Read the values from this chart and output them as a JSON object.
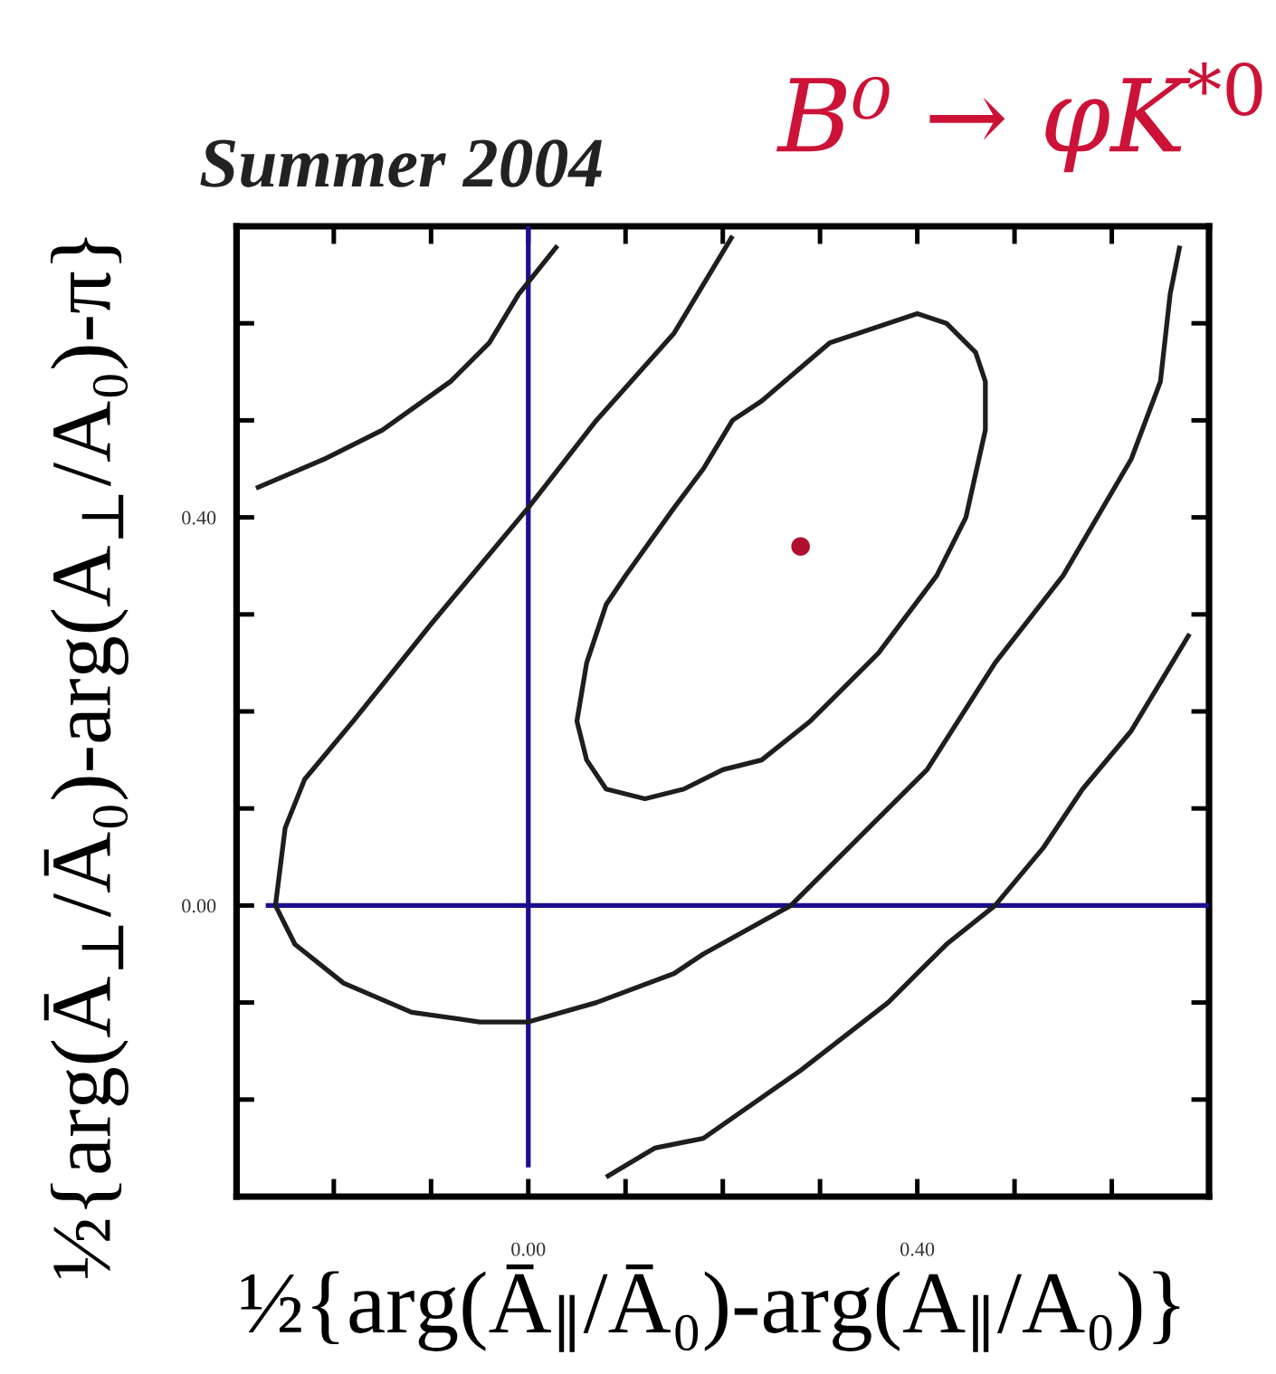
{
  "chart_data": {
    "type": "line",
    "title": "B⁰ → φK$^{*0}$",
    "xlabel": "½{arg(Ā$_{∥}$/Ā₀)-arg(A$_{∥}$/A₀)}",
    "ylabel": "½{arg(Ā$_{⊥}$/Ā₀)-arg(A$_{⊥}$/A₀)-π}",
    "annotations": [
      "Summer 2004"
    ],
    "xlim": [
      -0.3,
      0.7
    ],
    "ylim": [
      -0.3,
      0.7
    ],
    "xticks": [
      {
        "value": -0.2,
        "label": null
      },
      {
        "value": -0.1,
        "label": null
      },
      {
        "value": 0,
        "label": "0.00"
      },
      {
        "value": 0.1,
        "label": null
      },
      {
        "value": 0.2,
        "label": null
      },
      {
        "value": 0.3,
        "label": null
      },
      {
        "value": 0.4,
        "label": "0.40"
      },
      {
        "value": 0.5,
        "label": null
      },
      {
        "value": 0.6,
        "label": null
      }
    ],
    "yticks": [
      {
        "value": -0.2,
        "label": null
      },
      {
        "value": -0.1,
        "label": null
      },
      {
        "value": 0,
        "label": "0.00"
      },
      {
        "value": 0.1,
        "label": null
      },
      {
        "value": 0.2,
        "label": null
      },
      {
        "value": 0.3,
        "label": null
      },
      {
        "value": 0.4,
        "label": "0.40"
      },
      {
        "value": 0.5,
        "label": null
      },
      {
        "value": 0.6,
        "label": null
      }
    ],
    "series": [
      {
        "color": "#1c0f8f",
        "x": [
          0,
          0
        ],
        "values": [
          -0.27,
          0.7
        ]
      },
      {
        "color": "#1c0f8f",
        "x": [
          -0.27,
          0.7
        ],
        "values": [
          0,
          0
        ]
      },
      {
        "color": "#1e1e1e",
        "x": [
          0.4,
          0.43,
          0.46,
          0.47,
          0.47,
          0.45,
          0.42,
          0.36,
          0.29,
          0.24,
          0.2,
          0.16,
          0.12,
          0.08,
          0.06,
          0.05,
          0.06,
          0.08,
          0.1,
          0.15,
          0.18,
          0.21,
          0.24,
          0.31,
          0.37,
          0.4,
          0.43
        ],
        "values": [
          0.61,
          0.6,
          0.57,
          0.54,
          0.49,
          0.4,
          0.34,
          0.26,
          0.19,
          0.15,
          0.14,
          0.12,
          0.11,
          0.12,
          0.15,
          0.19,
          0.25,
          0.31,
          0.34,
          0.41,
          0.45,
          0.5,
          0.52,
          0.58,
          0.6,
          0.61,
          0.6
        ]
      },
      {
        "color": "#1e1e1e",
        "x": [
          0.21,
          0.15,
          0.07,
          0.0,
          -0.1,
          -0.18,
          -0.23,
          -0.25,
          -0.26,
          -0.24,
          -0.19,
          -0.12,
          -0.05,
          0.0,
          0.07,
          0.15,
          0.18,
          0.27,
          0.34,
          0.41,
          0.48,
          0.55,
          0.62,
          0.65,
          0.66,
          0.67
        ],
        "values": [
          0.69,
          0.59,
          0.5,
          0.41,
          0.29,
          0.19,
          0.13,
          0.08,
          0.0,
          -0.04,
          -0.08,
          -0.11,
          -0.12,
          -0.12,
          -0.1,
          -0.07,
          -0.05,
          0.0,
          0.07,
          0.14,
          0.25,
          0.34,
          0.46,
          0.54,
          0.63,
          0.68
        ]
      },
      {
        "color": "#1e1e1e",
        "x": [
          -0.28,
          -0.21,
          -0.15,
          -0.08,
          -0.04,
          -0.01,
          0.03
        ],
        "values": [
          0.43,
          0.46,
          0.49,
          0.54,
          0.58,
          0.63,
          0.68
        ]
      },
      {
        "color": "#1e1e1e",
        "x": [
          0.08,
          0.13,
          0.18,
          0.28,
          0.37,
          0.43,
          0.48,
          0.53,
          0.57,
          0.62,
          0.65,
          0.68
        ],
        "values": [
          -0.28,
          -0.25,
          -0.24,
          -0.17,
          -0.1,
          -0.04,
          0.0,
          0.06,
          0.12,
          0.18,
          0.23,
          0.28
        ]
      },
      {
        "type": "scatter",
        "marker": "circle",
        "color": "#b0102e",
        "x": [
          0.28
        ],
        "values": [
          0.37
        ]
      }
    ]
  }
}
